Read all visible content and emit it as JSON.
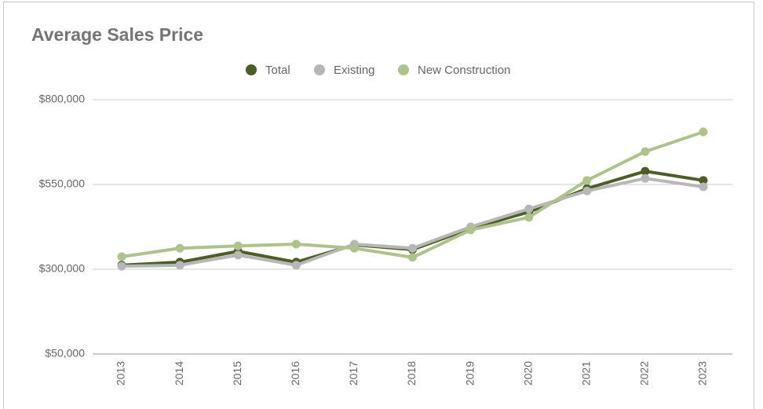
{
  "chart_data": {
    "type": "line",
    "title": "Average Sales Price",
    "categories": [
      "2013",
      "2014",
      "2015",
      "2016",
      "2017",
      "2018",
      "2019",
      "2020",
      "2021",
      "2022",
      "2023"
    ],
    "series": [
      {
        "name": "Total",
        "color": "#4b5e25",
        "values": [
          312000,
          321000,
          353000,
          321000,
          372000,
          358000,
          420000,
          469000,
          538000,
          589000,
          562000
        ]
      },
      {
        "name": "Existing",
        "color": "#b7b7b7",
        "values": [
          309000,
          312000,
          342000,
          312000,
          374000,
          362000,
          425000,
          478000,
          531000,
          568000,
          543000
        ]
      },
      {
        "name": "New Construction",
        "color": "#adc38a",
        "values": [
          337000,
          362000,
          369000,
          374000,
          362000,
          335000,
          416000,
          453000,
          562000,
          647000,
          705000
        ]
      }
    ],
    "ylim": [
      50000,
      800000
    ],
    "yticks": [
      {
        "value": 50000,
        "label": "$50,000"
      },
      {
        "value": 300000,
        "label": "$300,000"
      },
      {
        "value": 550000,
        "label": "$550,000"
      },
      {
        "value": 800000,
        "label": "$800,000"
      }
    ],
    "grid": true,
    "legend": "top"
  }
}
